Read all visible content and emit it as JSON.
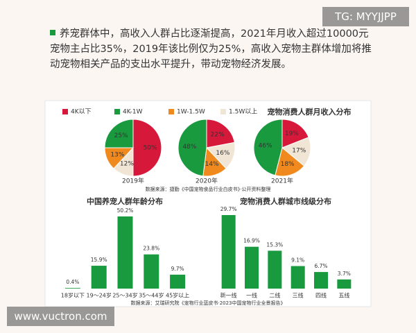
{
  "watermark_top": "TG: MYYJJPP",
  "paragraph": "养宠群体中，高收入人群占比逐渐提高，2021年月收入超过10000元宠物主占比35%，2019年该比例仅为25%，高收入宠物主群体增加将推动宠物相关产品的支出水平提升，带动宠物经济发展。",
  "watermark_bottom": "www.vuctron.com",
  "chart_data": [
    {
      "type": "pie",
      "title": "宠物消费人群月收入分布",
      "categories": [
        "4K以下",
        "4K-1W",
        "1W-1.5W",
        "1.5W以上"
      ],
      "colors": [
        "#d6193a",
        "#1a9a3f",
        "#f08a1e",
        "#f1e6d6"
      ],
      "series": [
        {
          "name": "2019年",
          "values": [
            50,
            25,
            13,
            12
          ],
          "value_labels": [
            "50%",
            "25%",
            "13%",
            "12%"
          ]
        },
        {
          "name": "2020年",
          "values": [
            22,
            48,
            14,
            16
          ],
          "value_labels": [
            "22%",
            "48%",
            "14%",
            "16%"
          ]
        },
        {
          "name": "2021年",
          "values": [
            19,
            46,
            18,
            17
          ],
          "value_labels": [
            "19%",
            "46%",
            "18%",
            "17%"
          ]
        }
      ],
      "source": "数据来源：捷勤《中国宠物食品行业白皮书》·公开资料整理"
    },
    {
      "type": "bar",
      "title": "中国养宠人群年龄分布",
      "categories": [
        "18岁以下",
        "19～24岁",
        "25～34岁",
        "35～44岁",
        "45岁以上"
      ],
      "values": [
        0.4,
        15.9,
        50.2,
        23.8,
        9.7
      ],
      "value_labels": [
        "0.4%",
        "15.9%",
        "50.2%",
        "23.8%",
        "9.7%"
      ],
      "color": "#1a9a3f"
    },
    {
      "type": "bar",
      "title": "宠物消费人群城市线级分布",
      "categories": [
        "新一线",
        "一线",
        "二线",
        "三线",
        "四线",
        "五线"
      ],
      "values": [
        29.7,
        16.9,
        15.3,
        9.1,
        6.7,
        3.7
      ],
      "value_labels": [
        "29.7%",
        "16.9%",
        "15.3%",
        "9.1%",
        "6.7%",
        "3.7%"
      ],
      "color": "#1a9a3f",
      "source": "数据来源：艾瑞研究院《宠物行业蓝皮书·2023中国宠物行业全景报告》"
    }
  ]
}
